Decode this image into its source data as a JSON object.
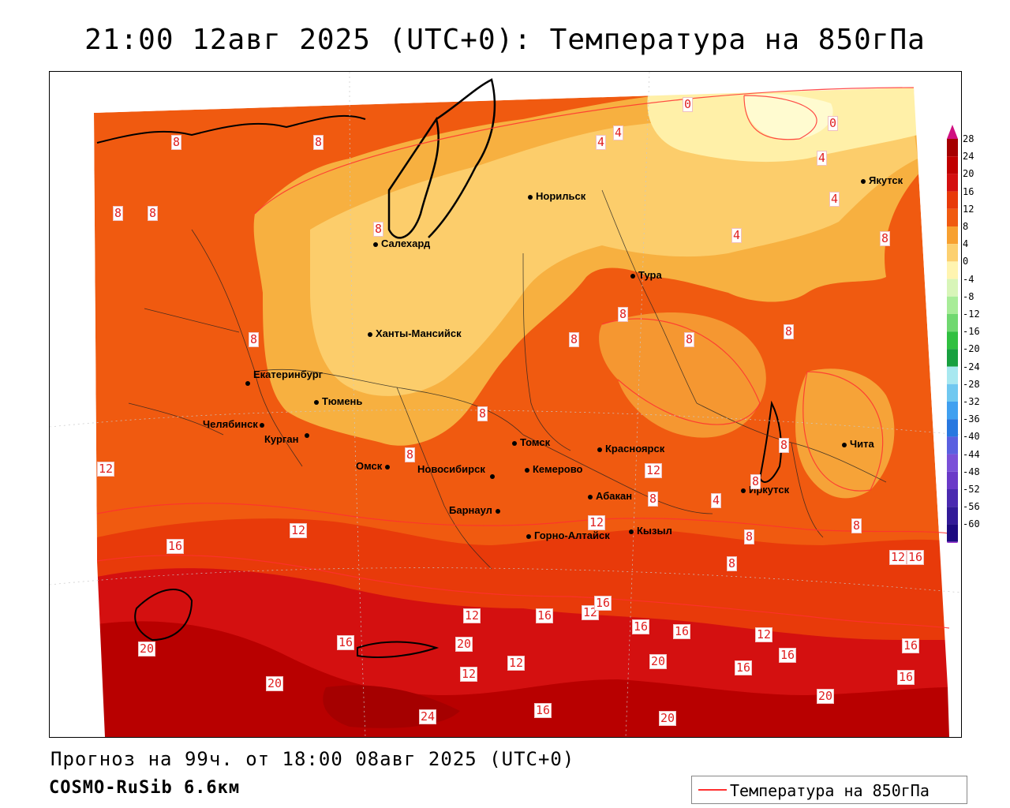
{
  "title": "21:00 12авг 2025 (UTC+0): Температура на 850гПа",
  "forecast_line": "Прогноз на 99ч. от 18:00 08авг 2025 (UTC+0)",
  "model_line": "COSMO-RuSib 6.6км",
  "legend": {
    "label": "Температура на 850гПа",
    "color": "#ff3030"
  },
  "colorbar": {
    "ticks": [
      "28",
      "24",
      "20",
      "16",
      "12",
      "8",
      "4",
      "0",
      "-4",
      "-8",
      "-12",
      "-16",
      "-20",
      "-24",
      "-28",
      "-32",
      "-36",
      "-40",
      "-44",
      "-48",
      "-52",
      "-56",
      "-60"
    ],
    "colors": [
      "#a50000",
      "#c00000",
      "#d41010",
      "#e83a0a",
      "#f05a10",
      "#f7a030",
      "#fcd070",
      "#fff4b0",
      "#d8f5b8",
      "#a8ec98",
      "#70d870",
      "#30c040",
      "#18a040",
      "#a8e8f0",
      "#70c8f0",
      "#40a0f0",
      "#2878e0",
      "#5a60e0",
      "#7a50d8",
      "#6a3ac8",
      "#4a2ab0",
      "#321a98",
      "#1c0a80"
    ]
  },
  "cities": [
    {
      "name": "Норильск"
    },
    {
      "name": "Салехард"
    },
    {
      "name": "Тура"
    },
    {
      "name": "Якутск"
    },
    {
      "name": "Ханты-Мансийск"
    },
    {
      "name": "Екатеринбург"
    },
    {
      "name": "Тюмень"
    },
    {
      "name": "Челябинск"
    },
    {
      "name": "Курган"
    },
    {
      "name": "Омск"
    },
    {
      "name": "Новосибирск"
    },
    {
      "name": "Томск"
    },
    {
      "name": "Кемерово"
    },
    {
      "name": "Красноярск"
    },
    {
      "name": "Абакан"
    },
    {
      "name": "Барнаул"
    },
    {
      "name": "Горно-Алтайск"
    },
    {
      "name": "Кызыл"
    },
    {
      "name": "Иркутск"
    },
    {
      "name": "Чита"
    }
  ],
  "isoline_labels": [
    "8",
    "8",
    "8",
    "8",
    "8",
    "0",
    "0",
    "4",
    "4",
    "4",
    "4",
    "4",
    "8",
    "8",
    "8",
    "8",
    "8",
    "8",
    "8",
    "8",
    "8",
    "12",
    "12",
    "12",
    "16",
    "16",
    "20",
    "12",
    "16",
    "12",
    "16",
    "16",
    "12",
    "16",
    "20",
    "16",
    "20",
    "24",
    "16",
    "20",
    "16",
    "20",
    "16",
    "20",
    "12",
    "16",
    "12",
    "8",
    "8",
    "4",
    "8",
    "8",
    "8",
    "12",
    "12",
    "16"
  ]
}
